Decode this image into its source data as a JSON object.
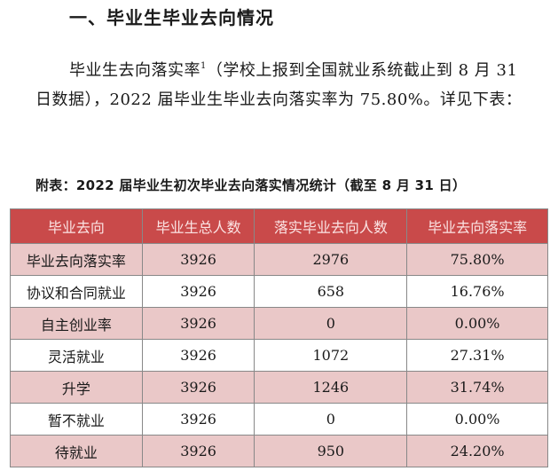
{
  "heading": "一、毕业生毕业去向情况",
  "paragraph": {
    "part1": "毕业生去向落实率",
    "footnote": "1",
    "part2": "（学校上报到全国就业系统截止到 8 月 31 日数据），2022 届毕业生毕业去向落实率为 75.80%。详见下表："
  },
  "caption": "附表：2022 届毕业生初次毕业去向落实情况统计（截至 8 月 31 日）",
  "table": {
    "headers": [
      "毕业去向",
      "毕业生总人数",
      "落实毕业去向人数",
      "毕业去向落实率"
    ],
    "rows": [
      [
        "毕业去向落实率",
        "3926",
        "2976",
        "75.80%"
      ],
      [
        "协议和合同就业",
        "3926",
        "658",
        "16.76%"
      ],
      [
        "自主创业率",
        "3926",
        "0",
        "0.00%"
      ],
      [
        "灵活就业",
        "3926",
        "1072",
        "27.31%"
      ],
      [
        "升学",
        "3926",
        "1246",
        "31.74%"
      ],
      [
        "暂不就业",
        "3926",
        "0",
        "0.00%"
      ],
      [
        "待就业",
        "3926",
        "950",
        "24.20%"
      ]
    ]
  }
}
